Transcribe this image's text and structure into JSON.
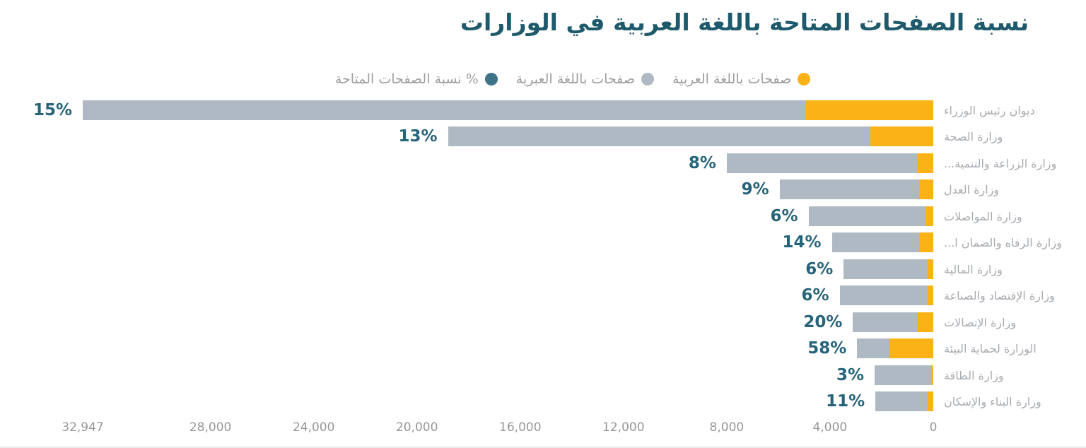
{
  "page": {
    "background_color": "#ffffff",
    "bottom_divider_color": "#e9e9e9"
  },
  "chart": {
    "title": "نسبة الصفحات المتاحة باللغة العربية في الوزارات",
    "title_color": "#1e5a6b",
    "legend": [
      {
        "name": "arabic-pages",
        "label": "صفحات باللغة العربية",
        "color": "#fbb216"
      },
      {
        "name": "hebrew-pages",
        "label": "صفحات باللغة العبرية",
        "color": "#afb9c3"
      },
      {
        "name": "percent-available",
        "label": "% نسبة الصفحات المتاحة",
        "color": "#3e7488"
      }
    ]
  },
  "chart_data": {
    "type": "bar",
    "orientation": "horizontal",
    "stacked": true,
    "axis_reversed_rtl": true,
    "grid": false,
    "legend_position": "top",
    "title": "نسبة الصفحات المتاحة باللغة العربية في الوزارات",
    "categories": [
      "ديوان رئيس الوزراء",
      "وزارة الصحة",
      "وزارة الزراعة والتنمية...",
      "وزارة العدل",
      "وزارة المواصلات",
      "وزارة الرفاه والضمان ا...",
      "وزارة المالية",
      "وزارة الإقتصاد والصناعة",
      "وزارة الإتصالات",
      "الوزارة لحماية البيئة",
      "وزارة الطاقة",
      "وزارة البناء والإسكان"
    ],
    "percent_shown": [
      15,
      13,
      8,
      9,
      6,
      14,
      6,
      6,
      20,
      58,
      3,
      11
    ],
    "percent_labels": [
      "15%",
      "13%",
      "8%",
      "9%",
      "6%",
      "14%",
      "6%",
      "6%",
      "20%",
      "58%",
      "3%",
      "11%"
    ],
    "totals_estimated": [
      32947,
      18800,
      8000,
      5950,
      4830,
      3930,
      3470,
      3630,
      3110,
      2950,
      2270,
      2240
    ],
    "series": [
      {
        "name": "صفحات باللغة العربية",
        "color": "#fbb216",
        "values": [
          4942,
          2444,
          640,
          536,
          290,
          550,
          208,
          218,
          622,
          1711,
          68,
          246
        ]
      },
      {
        "name": "صفحات باللغة العبرية",
        "color": "#afb9c3",
        "values": [
          28005,
          16356,
          7360,
          5414,
          4540,
          3380,
          3262,
          3412,
          2488,
          1239,
          2202,
          1994
        ]
      }
    ],
    "xaxis": {
      "max": 32947,
      "min": 0,
      "zero_position": "right",
      "tick_values": [
        32947,
        28000,
        24000,
        20000,
        16000,
        12000,
        8000,
        4000,
        0
      ],
      "tick_labels": [
        "32,947",
        "28,000",
        "24,000",
        "20,000",
        "16,000",
        "12,000",
        "8,000",
        "4,000",
        "0"
      ]
    },
    "colors": {
      "percent_label": "#26647a",
      "category_label": "#a8acb0",
      "axis_label": "#96979a"
    }
  }
}
